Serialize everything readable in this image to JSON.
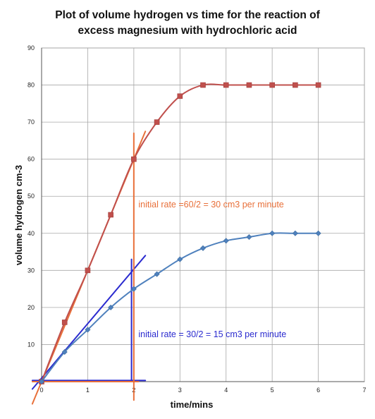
{
  "chart_data": {
    "type": "scatter",
    "title_lines": [
      "Plot of volume hydrogen vs time for the reaction of",
      "excess magnesium with hydrochloric acid"
    ],
    "xlabel": "time/mins",
    "ylabel": "volume hydrogen cm-3",
    "xlim": [
      0,
      7
    ],
    "ylim": [
      0,
      90
    ],
    "x_ticks": [
      0,
      1,
      2,
      3,
      4,
      5,
      6,
      7
    ],
    "y_ticks": [
      10,
      20,
      30,
      40,
      50,
      60,
      70,
      80,
      90
    ],
    "grid": true,
    "legend": "none",
    "series": [
      {
        "marker": "square",
        "color": "#c0504d",
        "x": [
          0,
          0.5,
          1,
          1.5,
          2,
          2.5,
          3,
          3.5,
          4,
          4.5,
          5,
          5.5,
          6
        ],
        "y": [
          0,
          16,
          30,
          45,
          60,
          70,
          77,
          80,
          80,
          80,
          80,
          80,
          80
        ]
      },
      {
        "marker": "diamond",
        "color": "#4f81bd",
        "x": [
          0,
          0.5,
          1,
          1.5,
          2,
          2.5,
          3,
          3.5,
          4,
          4.5,
          5,
          5.5,
          6
        ],
        "y": [
          0,
          8,
          14,
          20,
          25,
          29,
          33,
          36,
          38,
          39,
          40,
          40,
          40
        ]
      }
    ],
    "annotations": [
      {
        "text": "initial rate =60/2 = 30 cm3 per minute",
        "color": "#e8703a",
        "x": 2.1,
        "y": 47
      },
      {
        "text": "initial rate = 30/2 = 15 cm3 per minute",
        "color": "#2b2bcf",
        "x": 2.1,
        "y": 12
      }
    ],
    "construction_lines": {
      "orange": {
        "color": "#e8703a",
        "tangent": [
          [
            -0.2,
            -6
          ],
          [
            2.25,
            67.5
          ]
        ],
        "vertical": [
          [
            2,
            -5
          ],
          [
            2,
            67
          ]
        ],
        "baseline": [
          [
            -0.2,
            0
          ],
          [
            2.1,
            0
          ]
        ]
      },
      "blue": {
        "color": "#2b2bcf",
        "tangent": [
          [
            -0.2,
            -2
          ],
          [
            2.25,
            34
          ]
        ],
        "vertical": [
          [
            1.95,
            0
          ],
          [
            1.95,
            33
          ]
        ],
        "baseline": [
          [
            -0.2,
            0.3
          ],
          [
            2.25,
            0.3
          ]
        ]
      }
    }
  }
}
